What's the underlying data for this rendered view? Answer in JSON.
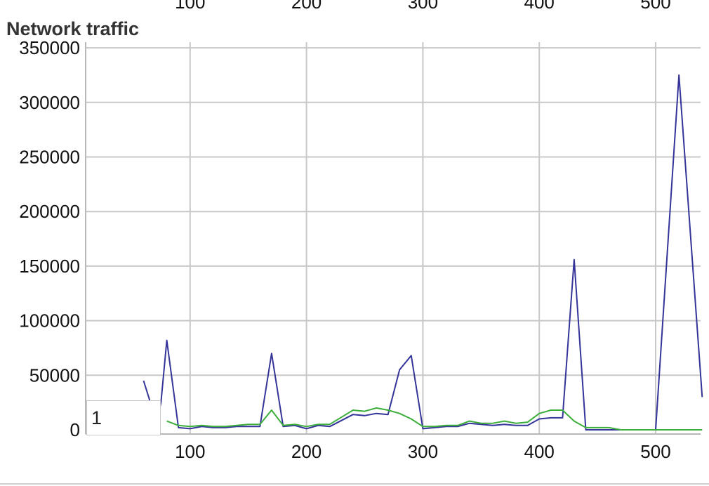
{
  "chart_data": {
    "type": "line",
    "title": "Network traffic",
    "xlabel": "",
    "ylabel": "",
    "xlim": [
      1,
      540
    ],
    "ylim": [
      0,
      350000
    ],
    "x_ticks": [
      "100",
      "200",
      "300",
      "400",
      "500"
    ],
    "y_ticks": [
      "0",
      "50000",
      "100000",
      "150000",
      "200000",
      "250000",
      "300000",
      "350000"
    ],
    "grid": true,
    "legend": "none",
    "series": [
      {
        "color": "#34349a",
        "points": [
          [
            60,
            45000
          ],
          [
            65,
            28000
          ],
          [
            70,
            0
          ],
          [
            75,
            25000
          ],
          [
            80,
            82000
          ],
          [
            90,
            2000
          ],
          [
            100,
            1000
          ],
          [
            110,
            3000
          ],
          [
            120,
            2000
          ],
          [
            130,
            2000
          ],
          [
            140,
            3000
          ],
          [
            150,
            3000
          ],
          [
            160,
            3000
          ],
          [
            170,
            70000
          ],
          [
            180,
            3000
          ],
          [
            190,
            4000
          ],
          [
            200,
            1000
          ],
          [
            210,
            4000
          ],
          [
            220,
            3000
          ],
          [
            240,
            14000
          ],
          [
            250,
            13000
          ],
          [
            260,
            15000
          ],
          [
            270,
            14000
          ],
          [
            280,
            55000
          ],
          [
            290,
            68000
          ],
          [
            300,
            1000
          ],
          [
            310,
            2000
          ],
          [
            320,
            3000
          ],
          [
            330,
            3000
          ],
          [
            340,
            6000
          ],
          [
            350,
            5000
          ],
          [
            360,
            4000
          ],
          [
            370,
            5000
          ],
          [
            380,
            4000
          ],
          [
            390,
            4000
          ],
          [
            400,
            10000
          ],
          [
            410,
            11000
          ],
          [
            420,
            11000
          ],
          [
            430,
            156000
          ],
          [
            440,
            0
          ],
          [
            450,
            0
          ],
          [
            460,
            0
          ],
          [
            470,
            0
          ],
          [
            480,
            0
          ],
          [
            490,
            0
          ],
          [
            500,
            0
          ],
          [
            520,
            325000
          ],
          [
            540,
            30000
          ]
        ]
      },
      {
        "color": "#3cae3c",
        "points": [
          [
            80,
            8000
          ],
          [
            90,
            4000
          ],
          [
            100,
            3000
          ],
          [
            110,
            4000
          ],
          [
            120,
            3000
          ],
          [
            130,
            3000
          ],
          [
            140,
            4000
          ],
          [
            150,
            5000
          ],
          [
            160,
            5000
          ],
          [
            170,
            18000
          ],
          [
            180,
            4000
          ],
          [
            190,
            5000
          ],
          [
            200,
            3000
          ],
          [
            210,
            5000
          ],
          [
            220,
            5000
          ],
          [
            240,
            18000
          ],
          [
            250,
            17000
          ],
          [
            260,
            20000
          ],
          [
            270,
            18000
          ],
          [
            280,
            15000
          ],
          [
            290,
            10000
          ],
          [
            300,
            3000
          ],
          [
            310,
            3000
          ],
          [
            320,
            4000
          ],
          [
            330,
            4000
          ],
          [
            340,
            8000
          ],
          [
            350,
            6000
          ],
          [
            360,
            6000
          ],
          [
            370,
            8000
          ],
          [
            380,
            6000
          ],
          [
            390,
            7000
          ],
          [
            400,
            15000
          ],
          [
            410,
            18000
          ],
          [
            420,
            18000
          ],
          [
            430,
            8000
          ],
          [
            440,
            2000
          ],
          [
            450,
            2000
          ],
          [
            460,
            2000
          ],
          [
            470,
            0
          ],
          [
            480,
            0
          ],
          [
            490,
            0
          ],
          [
            500,
            0
          ],
          [
            510,
            0
          ],
          [
            520,
            0
          ],
          [
            530,
            0
          ],
          [
            540,
            0
          ]
        ]
      }
    ]
  },
  "value_input": {
    "value": "1"
  }
}
